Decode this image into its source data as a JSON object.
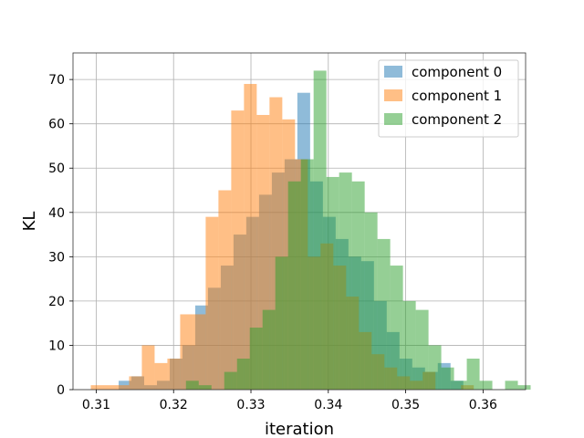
{
  "chart_data": {
    "type": "histogram",
    "title": "",
    "xlabel": "iteration",
    "ylabel": "KL",
    "xlim": [
      0.307,
      0.3655
    ],
    "ylim": [
      0,
      76
    ],
    "xticks": [
      0.31,
      0.32,
      0.33,
      0.34,
      0.35,
      0.36
    ],
    "xtick_labels": [
      "0.31",
      "0.32",
      "0.33",
      "0.34",
      "0.35",
      "0.36"
    ],
    "yticks": [
      0,
      10,
      20,
      30,
      40,
      50,
      60,
      70
    ],
    "ytick_labels": [
      "0",
      "10",
      "20",
      "30",
      "40",
      "50",
      "60",
      "70"
    ],
    "grid": true,
    "legend_position": "top-right",
    "alpha": 0.5,
    "series": [
      {
        "name": "component 0",
        "color": "#1f77b4",
        "bin_start": 0.3096,
        "bin_width": 0.00165,
        "counts": [
          0,
          0,
          2,
          3,
          1,
          2,
          7,
          10,
          19,
          23,
          28,
          35,
          39,
          44,
          49,
          52,
          67,
          47,
          39,
          34,
          30,
          29,
          20,
          13,
          7,
          5,
          4,
          6,
          2
        ]
      },
      {
        "name": "component 1",
        "color": "#ff7f0e",
        "bin_start": 0.3093,
        "bin_width": 0.00165,
        "counts": [
          1,
          1,
          1,
          3,
          10,
          6,
          7,
          17,
          17,
          39,
          45,
          63,
          69,
          62,
          66,
          61,
          52,
          30,
          33,
          28,
          21,
          13,
          8,
          5,
          3,
          2,
          4,
          0,
          0,
          1,
          0
        ]
      },
      {
        "name": "component 2",
        "color": "#2ca02c",
        "bin_start": 0.3216,
        "bin_width": 0.00165,
        "counts": [
          2,
          1,
          0,
          4,
          7,
          14,
          18,
          30,
          47,
          52,
          72,
          48,
          49,
          47,
          40,
          34,
          28,
          20,
          18,
          10,
          5,
          2,
          7,
          2,
          0,
          2,
          1
        ]
      }
    ]
  }
}
